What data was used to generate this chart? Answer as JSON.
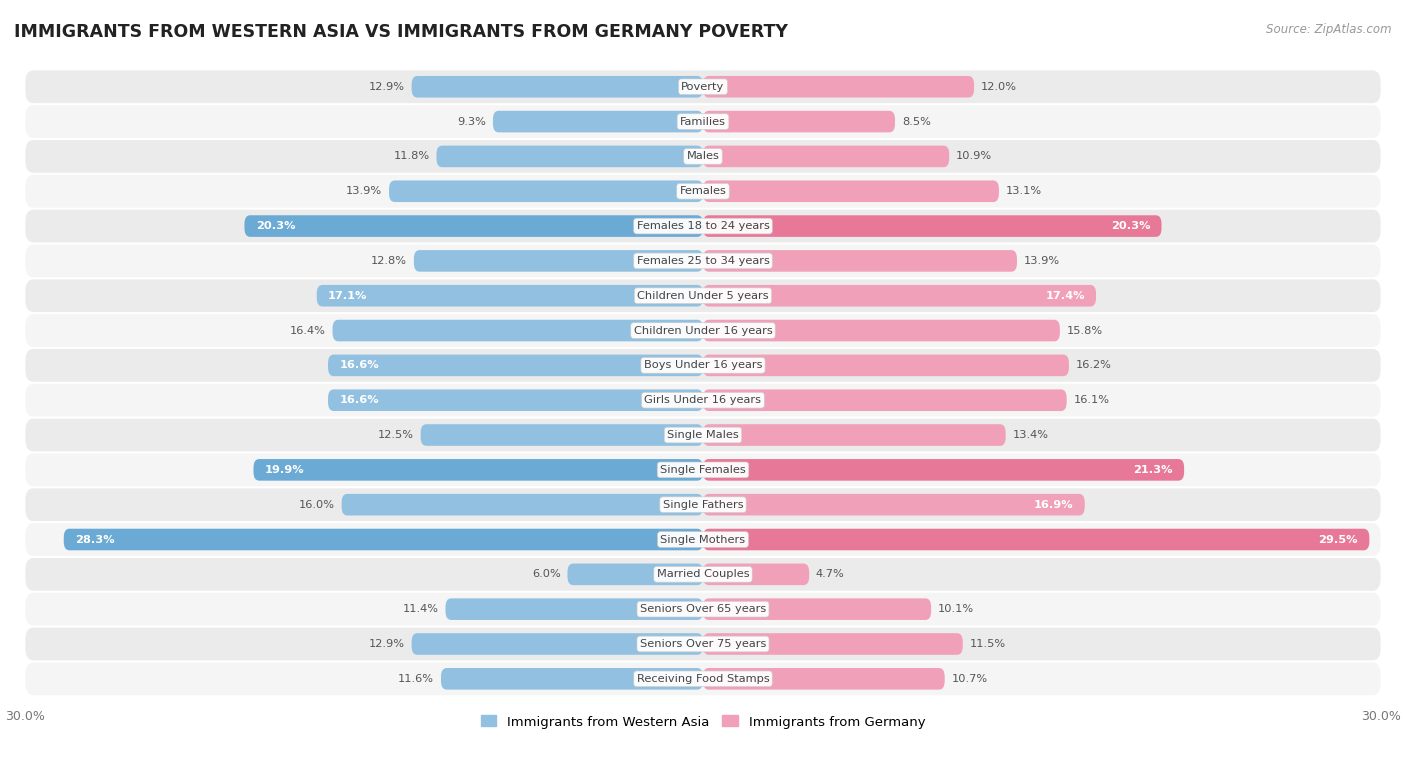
{
  "title": "IMMIGRANTS FROM WESTERN ASIA VS IMMIGRANTS FROM GERMANY POVERTY",
  "source": "Source: ZipAtlas.com",
  "categories": [
    "Poverty",
    "Families",
    "Males",
    "Females",
    "Females 18 to 24 years",
    "Females 25 to 34 years",
    "Children Under 5 years",
    "Children Under 16 years",
    "Boys Under 16 years",
    "Girls Under 16 years",
    "Single Males",
    "Single Females",
    "Single Fathers",
    "Single Mothers",
    "Married Couples",
    "Seniors Over 65 years",
    "Seniors Over 75 years",
    "Receiving Food Stamps"
  ],
  "western_asia": [
    12.9,
    9.3,
    11.8,
    13.9,
    20.3,
    12.8,
    17.1,
    16.4,
    16.6,
    16.6,
    12.5,
    19.9,
    16.0,
    28.3,
    6.0,
    11.4,
    12.9,
    11.6
  ],
  "germany": [
    12.0,
    8.5,
    10.9,
    13.1,
    20.3,
    13.9,
    17.4,
    15.8,
    16.2,
    16.1,
    13.4,
    21.3,
    16.9,
    29.5,
    4.7,
    10.1,
    11.5,
    10.7
  ],
  "color_western_asia": "#92c0e0",
  "color_germany": "#f0a0b8",
  "highlight_western_asia": "#6aaad4",
  "highlight_germany": "#e87898",
  "row_color_odd": "#ebebeb",
  "row_color_even": "#f5f5f5",
  "max_value": 30.0,
  "legend_label_west": "Immigrants from Western Asia",
  "legend_label_germany": "Immigrants from Germany",
  "highlight_rows": [
    4,
    11,
    13
  ],
  "white_label_threshold_wa": 16.5,
  "white_label_threshold_ger": 16.5
}
